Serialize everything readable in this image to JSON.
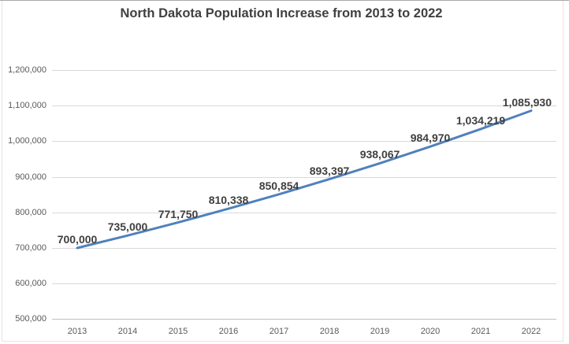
{
  "chart_data": {
    "type": "line",
    "title": "North Dakota Population Increase from 2013 to 2022",
    "categories": [
      "2013",
      "2014",
      "2015",
      "2016",
      "2017",
      "2018",
      "2019",
      "2020",
      "2021",
      "2022"
    ],
    "series": [
      {
        "name": "Population",
        "values": [
          700000,
          735000,
          771750,
          810338,
          850854,
          893397,
          938067,
          984970,
          1034219,
          1085930
        ],
        "point_labels": [
          "700,000",
          "735,000",
          "771,750",
          "810,338",
          "850,854",
          "893,397",
          "938,067",
          "984,970",
          "1,034,219",
          "1,085,930"
        ]
      }
    ],
    "xlabel": "",
    "ylabel": "",
    "ylim": [
      500000,
      1200000
    ],
    "ytick_step": 100000,
    "y_tick_labels": [
      "500,000",
      "600,000",
      "700,000",
      "800,000",
      "900,000",
      "1,000,000",
      "1,100,000",
      "1,200,000"
    ],
    "grid": "horizontal-only",
    "legend": "none",
    "data_label_position": "above",
    "colors": {
      "line": "#4f81bd",
      "gridline": "#d9d9d9",
      "axis_line": "#bfbfbf",
      "tick_text": "#595959",
      "title_text": "#404040",
      "data_label_text": "#3f3f3f",
      "chart_border": "#e4e4e4",
      "top_edge": "#a9a9a9",
      "background": "#ffffff"
    }
  }
}
